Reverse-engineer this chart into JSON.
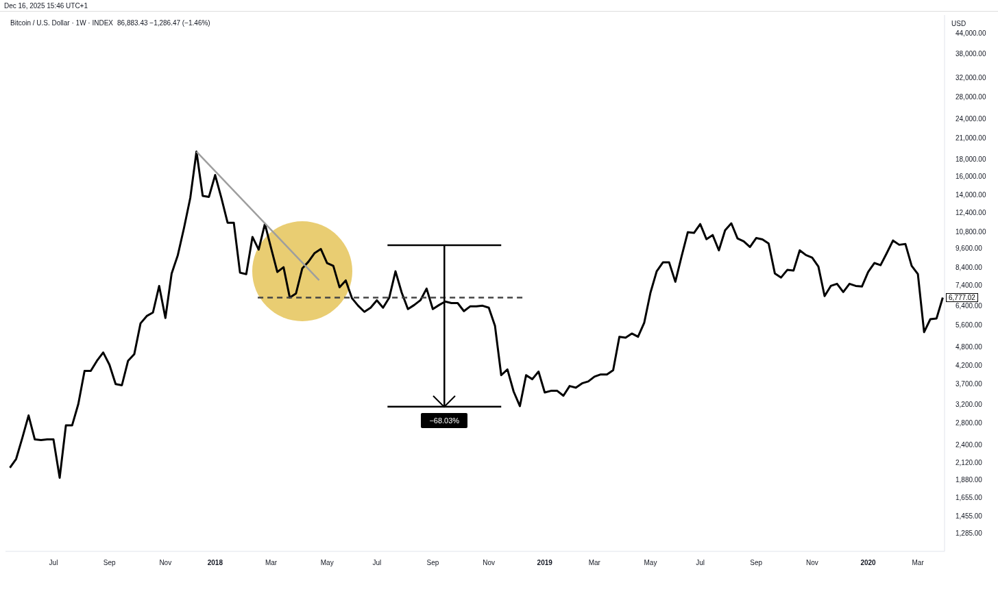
{
  "chart_data": {
    "type": "line",
    "title": "Bitcoin / U.S. Dollar · 1W · INDEX",
    "subtitle": "86,883.43 −1,286.47 (−1.46%)",
    "ylabel": "USD",
    "log": "y",
    "xlim": [
      "2017-05-10",
      "2020-04-01"
    ],
    "xticks": [
      {
        "value": "2017-07-03",
        "label": "Jul"
      },
      {
        "value": "2017-09-04",
        "label": "Sep"
      },
      {
        "value": "2017-11-06",
        "label": "Nov"
      },
      {
        "value": "2018-01-01",
        "label": "2018"
      },
      {
        "value": "2018-03-05",
        "label": "Mar"
      },
      {
        "value": "2018-05-07",
        "label": "May"
      },
      {
        "value": "2018-07-02",
        "label": "Jul"
      },
      {
        "value": "2018-09-03",
        "label": "Sep"
      },
      {
        "value": "2018-11-05",
        "label": "Nov"
      },
      {
        "value": "2019-01-07",
        "label": "2019"
      },
      {
        "value": "2019-03-04",
        "label": "Mar"
      },
      {
        "value": "2019-05-06",
        "label": "May"
      },
      {
        "value": "2019-07-01",
        "label": "Jul"
      },
      {
        "value": "2019-09-02",
        "label": "Sep"
      },
      {
        "value": "2019-11-04",
        "label": "Nov"
      },
      {
        "value": "2020-01-06",
        "label": "2020"
      },
      {
        "value": "2020-03-02",
        "label": "Mar"
      }
    ],
    "ylim": [
      1130,
      49800
    ],
    "yticks": [
      {
        "value": 1285,
        "label": "1,285.00"
      },
      {
        "value": 1455,
        "label": "1,455.00"
      },
      {
        "value": 1655,
        "label": "1,655.00"
      },
      {
        "value": 1880,
        "label": "1,880.00"
      },
      {
        "value": 2120,
        "label": "2,120.00"
      },
      {
        "value": 2400,
        "label": "2,400.00"
      },
      {
        "value": 2800,
        "label": "2,800.00"
      },
      {
        "value": 3200,
        "label": "3,200.00"
      },
      {
        "value": 3700,
        "label": "3,700.00"
      },
      {
        "value": 4200,
        "label": "4,200.00"
      },
      {
        "value": 4800,
        "label": "4,800.00"
      },
      {
        "value": 5600,
        "label": "5,600.00"
      },
      {
        "value": 6400,
        "label": "6,400.00"
      },
      {
        "value": 7400,
        "label": "7,400.00"
      },
      {
        "value": 8400,
        "label": "8,400.00"
      },
      {
        "value": 9600,
        "label": "9,600.00"
      },
      {
        "value": 10800,
        "label": "10,800.00"
      },
      {
        "value": 12400,
        "label": "12,400.00"
      },
      {
        "value": 14000,
        "label": "14,000.00"
      },
      {
        "value": 16000,
        "label": "16,000.00"
      },
      {
        "value": 18000,
        "label": "18,000.00"
      },
      {
        "value": 21000,
        "label": "21,000.00"
      },
      {
        "value": 24000,
        "label": "24,000.00"
      },
      {
        "value": 28000,
        "label": "28,000.00"
      },
      {
        "value": 32000,
        "label": "32,000.00"
      },
      {
        "value": 38000,
        "label": "38,000.00"
      },
      {
        "value": 44000,
        "label": "44,000.00"
      }
    ],
    "x": [
      "2017-05-15",
      "2017-05-22",
      "2017-05-29",
      "2017-06-05",
      "2017-06-12",
      "2017-06-19",
      "2017-06-26",
      "2017-07-03",
      "2017-07-10",
      "2017-07-17",
      "2017-07-24",
      "2017-07-31",
      "2017-08-07",
      "2017-08-14",
      "2017-08-21",
      "2017-08-28",
      "2017-09-04",
      "2017-09-11",
      "2017-09-18",
      "2017-09-25",
      "2017-10-02",
      "2017-10-09",
      "2017-10-16",
      "2017-10-23",
      "2017-10-30",
      "2017-11-06",
      "2017-11-13",
      "2017-11-20",
      "2017-11-27",
      "2017-12-04",
      "2017-12-11",
      "2017-12-18",
      "2017-12-25",
      "2018-01-01",
      "2018-01-08",
      "2018-01-15",
      "2018-01-22",
      "2018-01-29",
      "2018-02-05",
      "2018-02-12",
      "2018-02-19",
      "2018-02-26",
      "2018-03-05",
      "2018-03-12",
      "2018-03-19",
      "2018-03-26",
      "2018-04-02",
      "2018-04-09",
      "2018-04-16",
      "2018-04-23",
      "2018-04-30",
      "2018-05-07",
      "2018-05-14",
      "2018-05-21",
      "2018-05-28",
      "2018-06-04",
      "2018-06-11",
      "2018-06-18",
      "2018-06-25",
      "2018-07-02",
      "2018-07-09",
      "2018-07-16",
      "2018-07-23",
      "2018-07-30",
      "2018-08-06",
      "2018-08-13",
      "2018-08-20",
      "2018-08-27",
      "2018-09-03",
      "2018-09-10",
      "2018-09-17",
      "2018-09-24",
      "2018-10-01",
      "2018-10-08",
      "2018-10-15",
      "2018-10-22",
      "2018-10-29",
      "2018-11-05",
      "2018-11-12",
      "2018-11-19",
      "2018-11-26",
      "2018-12-03",
      "2018-12-10",
      "2018-12-17",
      "2018-12-24",
      "2018-12-31",
      "2019-01-07",
      "2019-01-14",
      "2019-01-21",
      "2019-01-28",
      "2019-02-04",
      "2019-02-11",
      "2019-02-18",
      "2019-02-25",
      "2019-03-04",
      "2019-03-11",
      "2019-03-18",
      "2019-03-25",
      "2019-04-01",
      "2019-04-08",
      "2019-04-15",
      "2019-04-22",
      "2019-04-29",
      "2019-05-06",
      "2019-05-13",
      "2019-05-20",
      "2019-05-27",
      "2019-06-03",
      "2019-06-10",
      "2019-06-17",
      "2019-06-24",
      "2019-07-01",
      "2019-07-08",
      "2019-07-15",
      "2019-07-22",
      "2019-07-29",
      "2019-08-05",
      "2019-08-12",
      "2019-08-19",
      "2019-08-26",
      "2019-09-02",
      "2019-09-09",
      "2019-09-16",
      "2019-09-23",
      "2019-09-30",
      "2019-10-07",
      "2019-10-14",
      "2019-10-21",
      "2019-10-28",
      "2019-11-04",
      "2019-11-11",
      "2019-11-18",
      "2019-11-25",
      "2019-12-02",
      "2019-12-09",
      "2019-12-16",
      "2019-12-23",
      "2019-12-30",
      "2020-01-06",
      "2020-01-13",
      "2020-01-20",
      "2020-01-27",
      "2020-02-03",
      "2020-02-10",
      "2020-02-17",
      "2020-02-24",
      "2020-03-02",
      "2020-03-09",
      "2020-03-16",
      "2020-03-23",
      "2020-03-30"
    ],
    "series": [
      {
        "color": "#000000",
        "values": [
          2040,
          2170,
          2520,
          2950,
          2490,
          2480,
          2490,
          2490,
          1900,
          2750,
          2750,
          3200,
          4040,
          4040,
          4340,
          4600,
          4220,
          3680,
          3650,
          4340,
          4550,
          5650,
          5950,
          6100,
          7360,
          5870,
          8030,
          9150,
          11100,
          13700,
          19000,
          13900,
          13800,
          16100,
          13700,
          11500,
          11500,
          8080,
          8000,
          10400,
          9510,
          11400,
          9600,
          8120,
          8400,
          6780,
          6980,
          8320,
          8730,
          9280,
          9550,
          8650,
          8480,
          7290,
          7650,
          6750,
          6400,
          6130,
          6310,
          6650,
          6310,
          6780,
          8160,
          7020,
          6250,
          6430,
          6650,
          7220,
          6250,
          6430,
          6590,
          6520,
          6520,
          6160,
          6370,
          6370,
          6400,
          6310,
          5550,
          3920,
          4080,
          3490,
          3150,
          3920,
          3810,
          4020,
          3470,
          3510,
          3510,
          3390,
          3630,
          3590,
          3700,
          3750,
          3880,
          3940,
          3940,
          4060,
          5140,
          5110,
          5260,
          5140,
          5680,
          7020,
          8160,
          8690,
          8690,
          7580,
          9060,
          10750,
          10700,
          11390,
          10240,
          10540,
          9460,
          10900,
          11450,
          10290,
          10080,
          9690,
          10320,
          10220,
          9930,
          8040,
          7810,
          8240,
          8200,
          9460,
          9150,
          8990,
          8440,
          6850,
          7360,
          7470,
          7050,
          7470,
          7360,
          7330,
          8120,
          8650,
          8520,
          9280,
          10140,
          9840,
          9890,
          8480,
          8000,
          5310,
          5820,
          5850,
          6777.02
        ]
      },
      {
        "type": "line",
        "color": "#9e9e9e",
        "x": [
          "2017-12-11",
          "2018-04-28"
        ],
        "values": [
          19000,
          7660
        ]
      },
      {
        "type": "line",
        "color": "#444444",
        "line_style": "dashed",
        "x": [
          "2018-02-18",
          "2018-12-16"
        ],
        "values": [
          6780,
          6780
        ]
      },
      {
        "type": "line",
        "color": "#000000",
        "x": [
          "2018-07-14",
          "2018-11-19"
        ],
        "values": [
          9815,
          9815
        ]
      },
      {
        "type": "line",
        "color": "#000000",
        "x": [
          "2018-07-14",
          "2018-11-19"
        ],
        "values": [
          3138,
          3138
        ]
      },
      {
        "type": "line",
        "color": "#000000",
        "x": [
          "2018-09-16",
          "2018-09-16"
        ],
        "values": [
          9815,
          3138
        ]
      }
    ],
    "annotations": [
      "Dec 16, 2025 15:46 UTC+1",
      {
        "text": "6,777.02",
        "x": "2020-03-30",
        "y": 6777.02
      },
      {
        "text": "−68.03%",
        "x": "2018-09-16",
        "y": 3138
      }
    ]
  }
}
